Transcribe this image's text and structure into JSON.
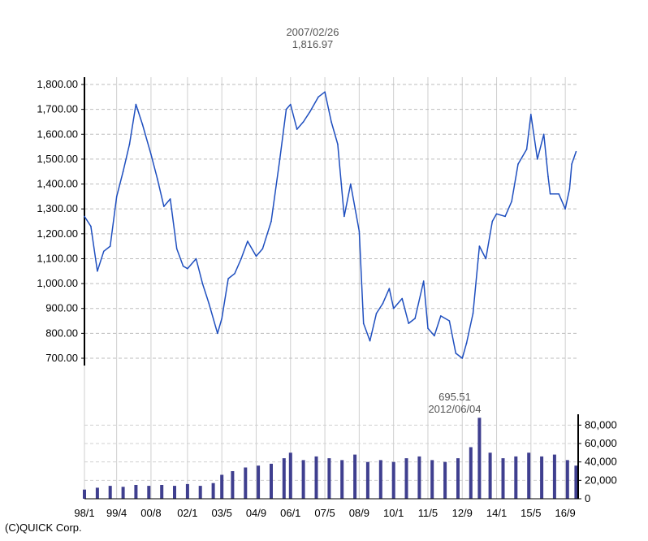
{
  "chart_data": [
    {
      "type": "line",
      "panel": "price",
      "ylim": [
        700,
        1800
      ],
      "yticks": [
        700,
        800,
        900,
        1000,
        1100,
        1200,
        1300,
        1400,
        1500,
        1600,
        1700,
        1800
      ],
      "ytick_labels": [
        "700.00",
        "800.00",
        "900.00",
        "1,000.00",
        "1,100.00",
        "1,200.00",
        "1,300.00",
        "1,400.00",
        "1,500.00",
        "1,600.00",
        "1,700.00",
        "1,800.00"
      ],
      "x_tick_labels": [
        "98/1",
        "99/4",
        "00/8",
        "02/1",
        "03/5",
        "04/9",
        "06/1",
        "07/5",
        "08/9",
        "10/1",
        "11/5",
        "12/9",
        "14/1",
        "15/5",
        "16/9"
      ],
      "x_range": [
        "1998-01",
        "2017-03"
      ],
      "grid": true,
      "color": "#1f4fbf",
      "series": [
        {
          "x": [
            "1998-01",
            "1998-04",
            "1998-07",
            "1998-10",
            "1999-01",
            "1999-04",
            "1999-07",
            "1999-10",
            "2000-01",
            "2000-04",
            "2000-08",
            "2000-11",
            "2001-02",
            "2001-05",
            "2001-08",
            "2001-11",
            "2002-01",
            "2002-05",
            "2002-08",
            "2002-11",
            "2003-03",
            "2003-05",
            "2003-08",
            "2003-11",
            "2004-02",
            "2004-05",
            "2004-09",
            "2004-12",
            "2005-04",
            "2005-08",
            "2005-11",
            "2006-01",
            "2006-04",
            "2006-07",
            "2006-10",
            "2007-02",
            "2007-05",
            "2007-08",
            "2007-11",
            "2008-02",
            "2008-05",
            "2008-09",
            "2008-11",
            "2009-02",
            "2009-05",
            "2009-08",
            "2009-11",
            "2010-01",
            "2010-05",
            "2010-08",
            "2010-11",
            "2011-03",
            "2011-05",
            "2011-08",
            "2011-11",
            "2012-03",
            "2012-06",
            "2012-09",
            "2012-11",
            "2013-02",
            "2013-05",
            "2013-08",
            "2013-11",
            "2014-01",
            "2014-05",
            "2014-08",
            "2014-11",
            "2015-03",
            "2015-05",
            "2015-08",
            "2015-11",
            "2016-01",
            "2016-02",
            "2016-06",
            "2016-09",
            "2016-11",
            "2016-12",
            "2017-02"
          ],
          "values": [
            1270,
            1230,
            1050,
            1130,
            1150,
            1350,
            1450,
            1560,
            1720,
            1640,
            1520,
            1420,
            1310,
            1340,
            1140,
            1070,
            1060,
            1100,
            1000,
            920,
            800,
            860,
            1020,
            1040,
            1100,
            1170,
            1110,
            1140,
            1250,
            1500,
            1700,
            1720,
            1620,
            1650,
            1690,
            1750,
            1770,
            1650,
            1560,
            1270,
            1400,
            1210,
            840,
            770,
            880,
            920,
            980,
            900,
            940,
            840,
            860,
            1010,
            820,
            790,
            870,
            850,
            720,
            700,
            760,
            880,
            1150,
            1100,
            1250,
            1280,
            1270,
            1330,
            1480,
            1540,
            1680,
            1500,
            1600,
            1430,
            1360,
            1360,
            1300,
            1380,
            1480,
            1530
          ]
        }
      ],
      "annotations": [
        {
          "text_lines": [
            "2007/02/26",
            "1,816.97"
          ]
        },
        {
          "text_lines": [
            "695.51",
            "2012/06/04"
          ]
        }
      ]
    },
    {
      "type": "bar",
      "panel": "volume",
      "ylim": [
        0,
        90000
      ],
      "yticks": [
        0,
        20000,
        40000,
        60000,
        80000
      ],
      "ytick_labels": [
        "0",
        "20,000",
        "40,000",
        "60,000",
        "80,000"
      ],
      "color": "#3f3f8f",
      "x": [
        "1998-01",
        "1998-07",
        "1999-01",
        "1999-07",
        "2000-01",
        "2000-07",
        "2001-01",
        "2001-07",
        "2002-01",
        "2002-07",
        "2003-01",
        "2003-05",
        "2003-10",
        "2004-04",
        "2004-10",
        "2005-04",
        "2005-10",
        "2006-01",
        "2006-07",
        "2007-01",
        "2007-07",
        "2008-01",
        "2008-07",
        "2009-01",
        "2009-07",
        "2010-01",
        "2010-07",
        "2011-01",
        "2011-07",
        "2012-01",
        "2012-07",
        "2013-01",
        "2013-05",
        "2013-10",
        "2014-04",
        "2014-10",
        "2015-04",
        "2015-10",
        "2016-04",
        "2016-10",
        "2017-02"
      ],
      "values": [
        10000,
        12000,
        14000,
        13000,
        15000,
        14000,
        15000,
        14000,
        16000,
        14000,
        17000,
        26000,
        30000,
        34000,
        36000,
        38000,
        44000,
        50000,
        42000,
        46000,
        44000,
        42000,
        48000,
        40000,
        42000,
        40000,
        44000,
        46000,
        42000,
        40000,
        44000,
        56000,
        88000,
        50000,
        44000,
        46000,
        50000,
        46000,
        48000,
        42000,
        36000
      ]
    }
  ],
  "footer": {
    "credit": "(C)QUICK Corp."
  }
}
